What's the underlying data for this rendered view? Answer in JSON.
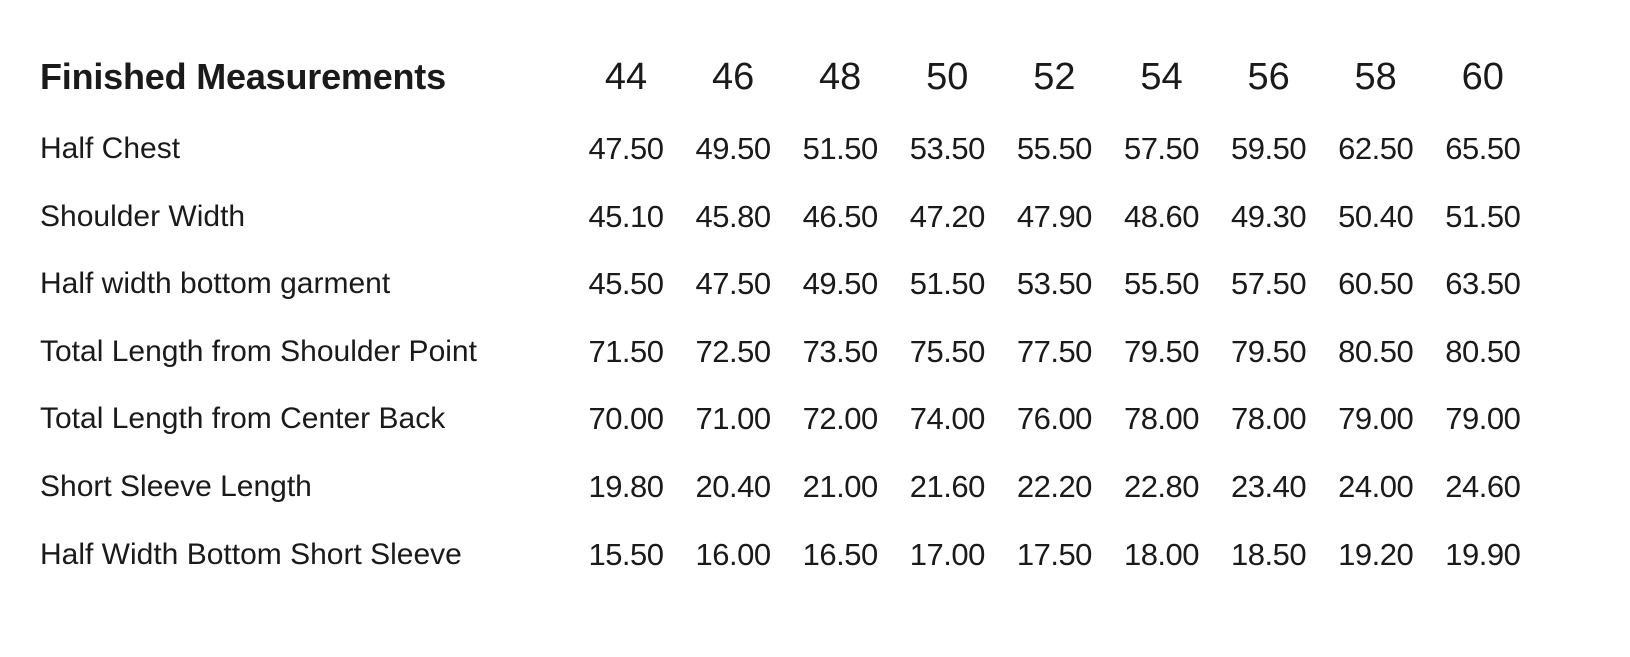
{
  "table": {
    "title": "Finished Measurements",
    "sizes": [
      "44",
      "46",
      "48",
      "50",
      "52",
      "54",
      "56",
      "58",
      "60"
    ],
    "rows": [
      {
        "label": "Half Chest",
        "values": [
          "47.50",
          "49.50",
          "51.50",
          "53.50",
          "55.50",
          "57.50",
          "59.50",
          "62.50",
          "65.50"
        ]
      },
      {
        "label": "Shoulder Width",
        "values": [
          "45.10",
          "45.80",
          "46.50",
          "47.20",
          "47.90",
          "48.60",
          "49.30",
          "50.40",
          "51.50"
        ]
      },
      {
        "label": "Half width bottom garment",
        "values": [
          "45.50",
          "47.50",
          "49.50",
          "51.50",
          "53.50",
          "55.50",
          "57.50",
          "60.50",
          "63.50"
        ]
      },
      {
        "label": "Total Length from Shoulder Point",
        "values": [
          "71.50",
          "72.50",
          "73.50",
          "75.50",
          "77.50",
          "79.50",
          "79.50",
          "80.50",
          "80.50"
        ]
      },
      {
        "label": "Total Length from Center Back",
        "values": [
          "70.00",
          "71.00",
          "72.00",
          "74.00",
          "76.00",
          "78.00",
          "78.00",
          "79.00",
          "79.00"
        ]
      },
      {
        "label": "Short Sleeve Length",
        "values": [
          "19.80",
          "20.40",
          "21.00",
          "21.60",
          "22.20",
          "22.80",
          "23.40",
          "24.00",
          "24.60"
        ]
      },
      {
        "label": "Half Width Bottom Short Sleeve",
        "values": [
          "15.50",
          "16.00",
          "16.50",
          "17.00",
          "17.50",
          "18.00",
          "18.50",
          "19.20",
          "19.90"
        ]
      }
    ]
  }
}
